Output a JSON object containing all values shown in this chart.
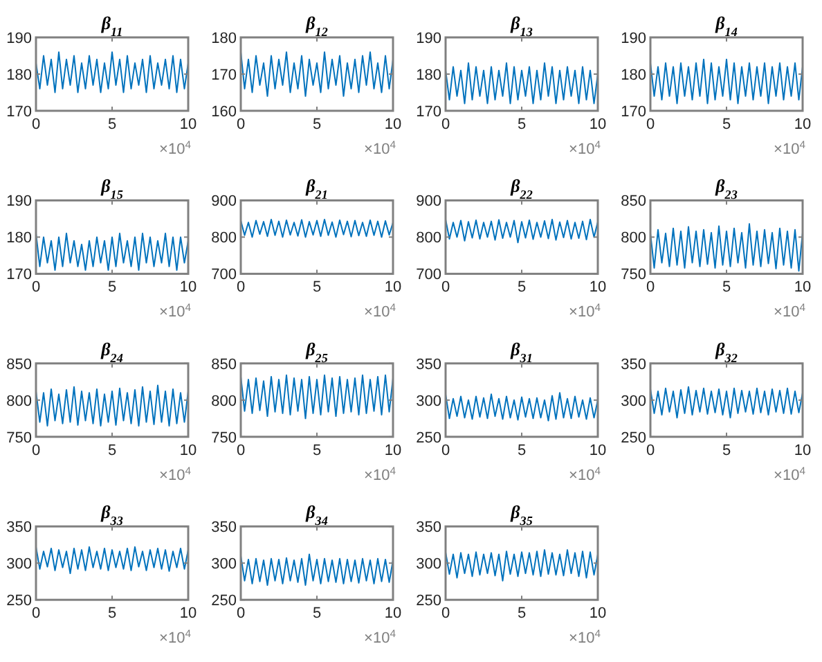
{
  "chart_data": [
    {
      "type": "line",
      "title": "β$_{11}$",
      "xlabel": "×10$^{4}$",
      "xlim": [
        0,
        10
      ],
      "xticks": [
        0,
        5,
        10
      ],
      "ylim": [
        170,
        190
      ],
      "yticks": [
        170,
        180,
        190
      ],
      "x": [
        0,
        0.25,
        0.5,
        0.75,
        1,
        1.25,
        1.5,
        1.75,
        2,
        2.25,
        2.5,
        2.75,
        3,
        3.25,
        3.5,
        3.75,
        4,
        4.25,
        4.5,
        4.75,
        5,
        5.25,
        5.5,
        5.75,
        6,
        6.25,
        6.5,
        6.75,
        7,
        7.25,
        7.5,
        7.75,
        8,
        8.25,
        8.5,
        8.75,
        9,
        9.25,
        9.5,
        9.75,
        10
      ],
      "series": [
        {
          "color": "#0072bd",
          "values": [
            183,
            176,
            185,
            177,
            184,
            175,
            186,
            176,
            184,
            177,
            185,
            175,
            183,
            176,
            185,
            177,
            184,
            175,
            183,
            176,
            186,
            177,
            184,
            175,
            185,
            176,
            183,
            177,
            184,
            175,
            185,
            176,
            183,
            177,
            184,
            176,
            185,
            175,
            184,
            176,
            183
          ]
        }
      ]
    },
    {
      "type": "line",
      "title": "β$_{12}$",
      "xlabel": "×10$^{4}$",
      "xlim": [
        0,
        10
      ],
      "xticks": [
        0,
        5,
        10
      ],
      "ylim": [
        160,
        180
      ],
      "yticks": [
        160,
        170,
        180
      ],
      "x": [
        0,
        0.25,
        0.5,
        0.75,
        1,
        1.25,
        1.5,
        1.75,
        2,
        2.25,
        2.5,
        2.75,
        3,
        3.25,
        3.5,
        3.75,
        4,
        4.25,
        4.5,
        4.75,
        5,
        5.25,
        5.5,
        5.75,
        6,
        6.25,
        6.5,
        6.75,
        7,
        7.25,
        7.5,
        7.75,
        8,
        8.25,
        8.5,
        8.75,
        9,
        9.25,
        9.5,
        9.75,
        10
      ],
      "series": [
        {
          "color": "#0072bd",
          "values": [
            176,
            166,
            174,
            165,
            175,
            167,
            173,
            164,
            175,
            166,
            174,
            167,
            176,
            165,
            173,
            166,
            175,
            164,
            174,
            167,
            173,
            165,
            176,
            166,
            174,
            167,
            175,
            164,
            173,
            166,
            174,
            165,
            175,
            167,
            176,
            166,
            173,
            165,
            175,
            166,
            174
          ]
        }
      ]
    },
    {
      "type": "line",
      "title": "β$_{13}$",
      "xlabel": "×10$^{4}$",
      "xlim": [
        0,
        10
      ],
      "xticks": [
        0,
        5,
        10
      ],
      "ylim": [
        170,
        190
      ],
      "yticks": [
        170,
        180,
        190
      ],
      "x": [
        0,
        0.25,
        0.5,
        0.75,
        1,
        1.25,
        1.5,
        1.75,
        2,
        2.25,
        2.5,
        2.75,
        3,
        3.25,
        3.5,
        3.75,
        4,
        4.25,
        4.5,
        4.75,
        5,
        5.25,
        5.5,
        5.75,
        6,
        6.25,
        6.5,
        6.75,
        7,
        7.25,
        7.5,
        7.75,
        8,
        8.25,
        8.5,
        8.75,
        9,
        9.25,
        9.5,
        9.75,
        10
      ],
      "series": [
        {
          "color": "#0072bd",
          "values": [
            181,
            173,
            182,
            174,
            181,
            172,
            183,
            173,
            182,
            174,
            181,
            172,
            182,
            173,
            181,
            174,
            183,
            172,
            182,
            173,
            181,
            174,
            182,
            172,
            181,
            173,
            183,
            174,
            182,
            172,
            181,
            173,
            182,
            174,
            181,
            172,
            182,
            173,
            181,
            172,
            180
          ]
        }
      ]
    },
    {
      "type": "line",
      "title": "β$_{14}$",
      "xlabel": "×10$^{4}$",
      "xlim": [
        0,
        10
      ],
      "xticks": [
        0,
        5,
        10
      ],
      "ylim": [
        170,
        190
      ],
      "yticks": [
        170,
        180,
        190
      ],
      "x": [
        0,
        0.25,
        0.5,
        0.75,
        1,
        1.25,
        1.5,
        1.75,
        2,
        2.25,
        2.5,
        2.75,
        3,
        3.25,
        3.5,
        3.75,
        4,
        4.25,
        4.5,
        4.75,
        5,
        5.25,
        5.5,
        5.75,
        6,
        6.25,
        6.5,
        6.75,
        7,
        7.25,
        7.5,
        7.75,
        8,
        8.25,
        8.5,
        8.75,
        9,
        9.25,
        9.5,
        9.75,
        10
      ],
      "series": [
        {
          "color": "#0072bd",
          "values": [
            183,
            174,
            182,
            173,
            183,
            174,
            182,
            172,
            183,
            174,
            182,
            173,
            183,
            174,
            184,
            172,
            183,
            173,
            182,
            174,
            184,
            173,
            183,
            172,
            182,
            174,
            183,
            173,
            182,
            174,
            183,
            172,
            182,
            174,
            183,
            173,
            182,
            174,
            183,
            173,
            182
          ]
        }
      ]
    },
    {
      "type": "line",
      "title": "β$_{15}$",
      "xlabel": "×10$^{4}$",
      "xlim": [
        0,
        10
      ],
      "xticks": [
        0,
        5,
        10
      ],
      "ylim": [
        170,
        190
      ],
      "yticks": [
        170,
        180,
        190
      ],
      "x": [
        0,
        0.25,
        0.5,
        0.75,
        1,
        1.25,
        1.5,
        1.75,
        2,
        2.25,
        2.5,
        2.75,
        3,
        3.25,
        3.5,
        3.75,
        4,
        4.25,
        4.5,
        4.75,
        5,
        5.25,
        5.5,
        5.75,
        6,
        6.25,
        6.5,
        6.75,
        7,
        7.25,
        7.5,
        7.75,
        8,
        8.25,
        8.5,
        8.75,
        9,
        9.25,
        9.5,
        9.75,
        10
      ],
      "series": [
        {
          "color": "#0072bd",
          "values": [
            181,
            172,
            180,
            173,
            179,
            171,
            180,
            172,
            181,
            173,
            179,
            172,
            178,
            171,
            179,
            172,
            180,
            173,
            179,
            171,
            180,
            172,
            181,
            173,
            179,
            172,
            180,
            171,
            181,
            173,
            180,
            172,
            179,
            173,
            181,
            172,
            180,
            171,
            180,
            173,
            179
          ]
        }
      ]
    },
    {
      "type": "line",
      "title": "β$_{21}$",
      "xlabel": "×10$^{4}$",
      "xlim": [
        0,
        10
      ],
      "xticks": [
        0,
        5,
        10
      ],
      "ylim": [
        700,
        900
      ],
      "yticks": [
        700,
        800,
        900
      ],
      "x": [
        0,
        0.25,
        0.5,
        0.75,
        1,
        1.25,
        1.5,
        1.75,
        2,
        2.25,
        2.5,
        2.75,
        3,
        3.25,
        3.5,
        3.75,
        4,
        4.25,
        4.5,
        4.75,
        5,
        5.25,
        5.5,
        5.75,
        6,
        6.25,
        6.5,
        6.75,
        7,
        7.25,
        7.5,
        7.75,
        8,
        8.25,
        8.5,
        8.75,
        9,
        9.25,
        9.5,
        9.75,
        10
      ],
      "series": [
        {
          "color": "#0072bd",
          "values": [
            845,
            805,
            840,
            800,
            845,
            808,
            842,
            802,
            848,
            805,
            843,
            800,
            846,
            806,
            840,
            803,
            847,
            800,
            842,
            806,
            845,
            802,
            848,
            805,
            841,
            800,
            846,
            807,
            843,
            801,
            845,
            804,
            840,
            802,
            846,
            805,
            843,
            800,
            844,
            806,
            840
          ]
        }
      ]
    },
    {
      "type": "line",
      "title": "β$_{22}$",
      "xlabel": "×10$^{4}$",
      "xlim": [
        0,
        10
      ],
      "xticks": [
        0,
        5,
        10
      ],
      "ylim": [
        700,
        900
      ],
      "yticks": [
        700,
        800,
        900
      ],
      "x": [
        0,
        0.25,
        0.5,
        0.75,
        1,
        1.25,
        1.5,
        1.75,
        2,
        2.25,
        2.5,
        2.75,
        3,
        3.25,
        3.5,
        3.75,
        4,
        4.25,
        4.5,
        4.75,
        5,
        5.25,
        5.5,
        5.75,
        6,
        6.25,
        6.5,
        6.75,
        7,
        7.25,
        7.5,
        7.75,
        8,
        8.25,
        8.5,
        8.75,
        9,
        9.25,
        9.5,
        9.75,
        10
      ],
      "series": [
        {
          "color": "#0072bd",
          "values": [
            848,
            795,
            840,
            800,
            845,
            790,
            842,
            798,
            846,
            795,
            840,
            800,
            843,
            792,
            847,
            797,
            840,
            800,
            845,
            785,
            842,
            798,
            846,
            794,
            840,
            800,
            844,
            796,
            848,
            792,
            841,
            799,
            845,
            795,
            840,
            797,
            843,
            793,
            848,
            800,
            842
          ]
        }
      ]
    },
    {
      "type": "line",
      "title": "β$_{23}$",
      "xlabel": "×10$^{4}$",
      "xlim": [
        0,
        10
      ],
      "xticks": [
        0,
        5,
        10
      ],
      "ylim": [
        750,
        850
      ],
      "yticks": [
        750,
        800,
        850
      ],
      "x": [
        0,
        0.25,
        0.5,
        0.75,
        1,
        1.25,
        1.5,
        1.75,
        2,
        2.25,
        2.5,
        2.75,
        3,
        3.25,
        3.5,
        3.75,
        4,
        4.25,
        4.5,
        4.75,
        5,
        5.25,
        5.5,
        5.75,
        6,
        6.25,
        6.5,
        6.75,
        7,
        7.25,
        7.5,
        7.75,
        8,
        8.25,
        8.5,
        8.75,
        9,
        9.25,
        9.5,
        9.75,
        10
      ],
      "series": [
        {
          "color": "#0072bd",
          "values": [
            805,
            758,
            810,
            765,
            805,
            760,
            812,
            762,
            808,
            758,
            814,
            765,
            808,
            760,
            810,
            763,
            806,
            758,
            815,
            762,
            808,
            760,
            812,
            765,
            806,
            758,
            818,
            762,
            808,
            760,
            810,
            764,
            806,
            757,
            812,
            762,
            808,
            758,
            810,
            754,
            806
          ]
        }
      ]
    },
    {
      "type": "line",
      "title": "β$_{24}$",
      "xlabel": "×10$^{4}$",
      "xlim": [
        0,
        10
      ],
      "xticks": [
        0,
        5,
        10
      ],
      "ylim": [
        750,
        850
      ],
      "yticks": [
        750,
        800,
        850
      ],
      "x": [
        0,
        0.25,
        0.5,
        0.75,
        1,
        1.25,
        1.5,
        1.75,
        2,
        2.25,
        2.5,
        2.75,
        3,
        3.25,
        3.5,
        3.75,
        4,
        4.25,
        4.5,
        4.75,
        5,
        5.25,
        5.5,
        5.75,
        6,
        6.25,
        6.5,
        6.75,
        7,
        7.25,
        7.5,
        7.75,
        8,
        8.25,
        8.5,
        8.75,
        9,
        9.25,
        9.5,
        9.75,
        10
      ],
      "series": [
        {
          "color": "#0072bd",
          "values": [
            812,
            770,
            810,
            765,
            815,
            772,
            808,
            768,
            814,
            770,
            818,
            766,
            812,
            772,
            810,
            768,
            815,
            765,
            808,
            770,
            812,
            766,
            816,
            772,
            810,
            768,
            814,
            765,
            818,
            770,
            812,
            767,
            820,
            770,
            812,
            765,
            815,
            768,
            810,
            770,
            812
          ]
        }
      ]
    },
    {
      "type": "line",
      "title": "β$_{25}$",
      "xlabel": "×10$^{4}$",
      "xlim": [
        0,
        10
      ],
      "xticks": [
        0,
        5,
        10
      ],
      "ylim": [
        750,
        850
      ],
      "yticks": [
        750,
        800,
        850
      ],
      "x": [
        0,
        0.25,
        0.5,
        0.75,
        1,
        1.25,
        1.5,
        1.75,
        2,
        2.25,
        2.5,
        2.75,
        3,
        3.25,
        3.5,
        3.75,
        4,
        4.25,
        4.5,
        4.75,
        5,
        5.25,
        5.5,
        5.75,
        6,
        6.25,
        6.5,
        6.75,
        7,
        7.25,
        7.5,
        7.75,
        8,
        8.25,
        8.5,
        8.75,
        9,
        9.25,
        9.5,
        9.75,
        10
      ],
      "series": [
        {
          "color": "#0072bd",
          "values": [
            832,
            785,
            828,
            782,
            830,
            786,
            826,
            778,
            832,
            784,
            828,
            782,
            834,
            780,
            830,
            785,
            828,
            775,
            832,
            782,
            828,
            780,
            834,
            784,
            830,
            778,
            832,
            782,
            828,
            784,
            830,
            780,
            834,
            782,
            828,
            785,
            832,
            780,
            834,
            784,
            830
          ]
        }
      ]
    },
    {
      "type": "line",
      "title": "β$_{31}$",
      "xlabel": "×10$^{4}$",
      "xlim": [
        0,
        10
      ],
      "xticks": [
        0,
        5,
        10
      ],
      "ylim": [
        250,
        350
      ],
      "yticks": [
        250,
        300,
        350
      ],
      "x": [
        0,
        0.25,
        0.5,
        0.75,
        1,
        1.25,
        1.5,
        1.75,
        2,
        2.25,
        2.5,
        2.75,
        3,
        3.25,
        3.5,
        3.75,
        4,
        4.25,
        4.5,
        4.75,
        5,
        5.25,
        5.5,
        5.75,
        6,
        6.25,
        6.5,
        6.75,
        7,
        7.25,
        7.5,
        7.75,
        8,
        8.25,
        8.5,
        8.75,
        9,
        9.25,
        9.5,
        9.75,
        10
      ],
      "series": [
        {
          "color": "#0072bd",
          "values": [
            308,
            275,
            302,
            278,
            305,
            276,
            300,
            274,
            305,
            277,
            303,
            275,
            308,
            278,
            302,
            274,
            305,
            276,
            300,
            273,
            304,
            277,
            302,
            275,
            303,
            276,
            300,
            272,
            306,
            274,
            310,
            276,
            302,
            275,
            305,
            277,
            300,
            274,
            303,
            276,
            300
          ]
        }
      ]
    },
    {
      "type": "line",
      "title": "β$_{32}$",
      "xlabel": "×10$^{4}$",
      "xlim": [
        0,
        10
      ],
      "xticks": [
        0,
        5,
        10
      ],
      "ylim": [
        250,
        350
      ],
      "yticks": [
        250,
        300,
        350
      ],
      "x": [
        0,
        0.25,
        0.5,
        0.75,
        1,
        1.25,
        1.5,
        1.75,
        2,
        2.25,
        2.5,
        2.75,
        3,
        3.25,
        3.5,
        3.75,
        4,
        4.25,
        4.5,
        4.75,
        5,
        5.25,
        5.5,
        5.75,
        6,
        6.25,
        6.5,
        6.75,
        7,
        7.25,
        7.5,
        7.75,
        8,
        8.25,
        8.5,
        8.75,
        9,
        9.25,
        9.5,
        9.75,
        10
      ],
      "series": [
        {
          "color": "#0072bd",
          "values": [
            315,
            282,
            312,
            280,
            316,
            284,
            312,
            276,
            314,
            282,
            318,
            280,
            313,
            284,
            316,
            281,
            312,
            283,
            315,
            280,
            312,
            276,
            316,
            282,
            313,
            284,
            312,
            281,
            316,
            283,
            312,
            280,
            315,
            284,
            313,
            282,
            316,
            281,
            312,
            283,
            310
          ]
        }
      ]
    },
    {
      "type": "line",
      "title": "β$_{33}$",
      "xlabel": "×10$^{4}$",
      "xlim": [
        0,
        10
      ],
      "xticks": [
        0,
        5,
        10
      ],
      "ylim": [
        250,
        350
      ],
      "yticks": [
        250,
        300,
        350
      ],
      "x": [
        0,
        0.25,
        0.5,
        0.75,
        1,
        1.25,
        1.5,
        1.75,
        2,
        2.25,
        2.5,
        2.75,
        3,
        3.25,
        3.5,
        3.75,
        4,
        4.25,
        4.5,
        4.75,
        5,
        5.25,
        5.5,
        5.75,
        6,
        6.25,
        6.5,
        6.75,
        7,
        7.25,
        7.5,
        7.75,
        8,
        8.25,
        8.5,
        8.75,
        9,
        9.25,
        9.5,
        9.75,
        10
      ],
      "series": [
        {
          "color": "#0072bd",
          "values": [
            322,
            292,
            316,
            295,
            320,
            290,
            318,
            294,
            316,
            286,
            320,
            292,
            318,
            290,
            322,
            294,
            316,
            292,
            320,
            290,
            318,
            294,
            316,
            292,
            320,
            290,
            322,
            295,
            316,
            290,
            318,
            294,
            320,
            292,
            318,
            289,
            316,
            294,
            320,
            292,
            318
          ]
        }
      ]
    },
    {
      "type": "line",
      "title": "β$_{34}$",
      "xlabel": "×10$^{4}$",
      "xlim": [
        0,
        10
      ],
      "xticks": [
        0,
        5,
        10
      ],
      "ylim": [
        250,
        350
      ],
      "yticks": [
        250,
        300,
        350
      ],
      "x": [
        0,
        0.25,
        0.5,
        0.75,
        1,
        1.25,
        1.5,
        1.75,
        2,
        2.25,
        2.5,
        2.75,
        3,
        3.25,
        3.5,
        3.75,
        4,
        4.25,
        4.5,
        4.75,
        5,
        5.25,
        5.5,
        5.75,
        6,
        6.25,
        6.5,
        6.75,
        7,
        7.25,
        7.5,
        7.75,
        8,
        8.25,
        8.5,
        8.75,
        9,
        9.25,
        9.5,
        9.75,
        10
      ],
      "series": [
        {
          "color": "#0072bd",
          "values": [
            310,
            276,
            305,
            272,
            306,
            275,
            304,
            270,
            306,
            276,
            305,
            272,
            307,
            276,
            304,
            274,
            306,
            270,
            312,
            276,
            305,
            272,
            306,
            275,
            304,
            274,
            306,
            272,
            305,
            275,
            304,
            273,
            306,
            276,
            304,
            272,
            306,
            275,
            305,
            274,
            304
          ]
        }
      ]
    },
    {
      "type": "line",
      "title": "β$_{35}$",
      "xlabel": "×10$^{4}$",
      "xlim": [
        0,
        10
      ],
      "xticks": [
        0,
        5,
        10
      ],
      "ylim": [
        250,
        350
      ],
      "yticks": [
        250,
        300,
        350
      ],
      "x": [
        0,
        0.25,
        0.5,
        0.75,
        1,
        1.25,
        1.5,
        1.75,
        2,
        2.25,
        2.5,
        2.75,
        3,
        3.25,
        3.5,
        3.75,
        4,
        4.25,
        4.5,
        4.75,
        5,
        5.25,
        5.5,
        5.75,
        6,
        6.25,
        6.5,
        6.75,
        7,
        7.25,
        7.5,
        7.75,
        8,
        8.25,
        8.5,
        8.75,
        9,
        9.25,
        9.5,
        9.75,
        10
      ],
      "series": [
        {
          "color": "#0072bd",
          "values": [
            315,
            285,
            312,
            280,
            314,
            286,
            312,
            282,
            315,
            284,
            312,
            286,
            314,
            283,
            312,
            276,
            316,
            285,
            312,
            282,
            315,
            286,
            314,
            284,
            316,
            282,
            318,
            285,
            314,
            284,
            312,
            283,
            318,
            286,
            314,
            282,
            316,
            280,
            315,
            284,
            312
          ]
        }
      ]
    }
  ]
}
